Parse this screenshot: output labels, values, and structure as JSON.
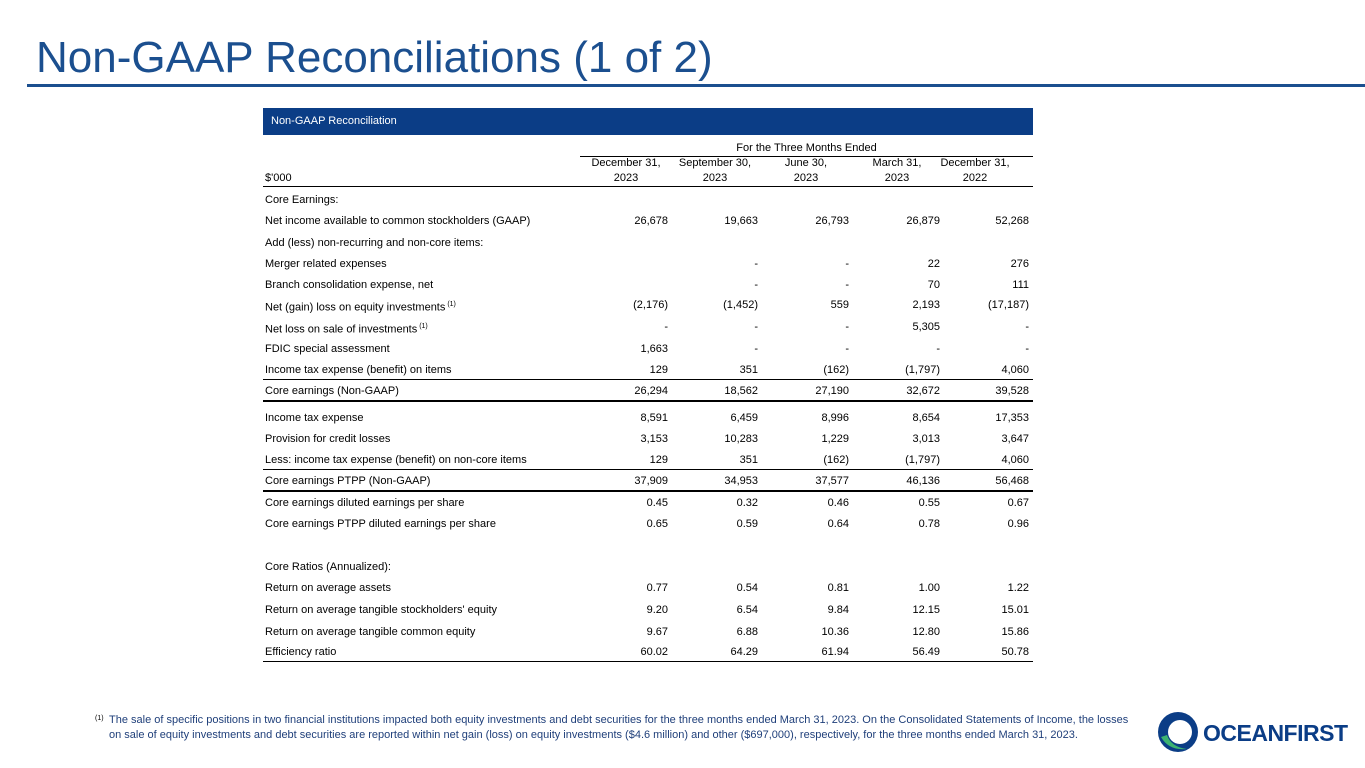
{
  "header": {
    "title": "Non-GAAP Reconciliations (1 of 2)"
  },
  "table": {
    "title": "Non-GAAP Reconciliation",
    "period": "For the Three Months Ended",
    "unit": "$'000",
    "columns": [
      [
        "December 31,",
        "2023"
      ],
      [
        "September 30,",
        "2023"
      ],
      [
        "June 30,",
        "2023"
      ],
      [
        "March 31,",
        "2023"
      ],
      [
        "December 31,",
        "2022"
      ]
    ],
    "rows": [
      {
        "label": "Core Earnings:"
      },
      {
        "label": "Net income available to common stockholders (GAAP)",
        "values": [
          "26,678",
          "19,663",
          "26,793",
          "26,879",
          "52,268"
        ]
      },
      {
        "label": "Add (less) non-recurring and non-core items:"
      },
      {
        "label": "Merger related expenses",
        "values": [
          null,
          "-",
          "-",
          "22",
          "276"
        ]
      },
      {
        "label": "Branch consolidation expense, net",
        "values": [
          null,
          "-",
          "-",
          "70",
          "111"
        ]
      },
      {
        "label": "Net (gain) loss on equity investments",
        "note": "(1)",
        "values": [
          "(2,176)",
          "(1,452)",
          "559",
          "2,193",
          "(17,187)"
        ]
      },
      {
        "label": "Net loss on sale of investments",
        "note": "(1)",
        "values": [
          "-",
          "-",
          "-",
          "5,305",
          "-"
        ]
      },
      {
        "label": "FDIC special assessment",
        "values": [
          "1,663",
          "-",
          "-",
          "-",
          "-"
        ]
      },
      {
        "label": "Income tax expense (benefit) on items",
        "values": [
          "129",
          "351",
          "(162)",
          "(1,797)",
          "4,060"
        ]
      },
      {
        "label": "Core earnings (Non-GAAP)",
        "values": [
          "26,294",
          "18,562",
          "27,190",
          "32,672",
          "39,528"
        ]
      },
      {
        "label": "Income tax expense",
        "values": [
          "8,591",
          "6,459",
          "8,996",
          "8,654",
          "17,353"
        ]
      },
      {
        "label": "Provision for credit losses",
        "values": [
          "3,153",
          "10,283",
          "1,229",
          "3,013",
          "3,647"
        ]
      },
      {
        "label": "Less: income tax expense (benefit) on non-core items",
        "values": [
          "129",
          "351",
          "(162)",
          "(1,797)",
          "4,060"
        ]
      },
      {
        "label": "Core earnings PTPP (Non-GAAP)",
        "values": [
          "37,909",
          "34,953",
          "37,577",
          "46,136",
          "56,468"
        ]
      },
      {
        "label": "Core earnings diluted earnings per share",
        "values": [
          "0.45",
          "0.32",
          "0.46",
          "0.55",
          "0.67"
        ]
      },
      {
        "label": "Core earnings PTPP diluted earnings per share",
        "values": [
          "0.65",
          "0.59",
          "0.64",
          "0.78",
          "0.96"
        ]
      },
      {
        "label": "Core Ratios (Annualized):"
      },
      {
        "label": "Return on average assets",
        "values": [
          "0.77",
          "0.54",
          "0.81",
          "1.00",
          "1.22"
        ]
      },
      {
        "label": "Return on average tangible stockholders' equity",
        "values": [
          "9.20",
          "6.54",
          "9.84",
          "12.15",
          "15.01"
        ]
      },
      {
        "label": "Return on average tangible common equity",
        "values": [
          "9.67",
          "6.88",
          "10.36",
          "12.80",
          "15.86"
        ]
      },
      {
        "label": "Efficiency ratio",
        "values": [
          "60.02",
          "64.29",
          "61.94",
          "56.49",
          "50.78"
        ]
      }
    ]
  },
  "footnote": {
    "marker": "(1)",
    "text": "The sale of specific positions in two financial institutions impacted both equity investments and debt securities for the three months ended March 31, 2023. On the Consolidated Statements of Income, the losses on sale of equity investments and debt securities are reported within net gain (loss) on equity investments ($4.6 million) and other ($697,000), respectively, for the three months ended March 31, 2023."
  },
  "logo": {
    "text": "OCEANFIRST"
  }
}
